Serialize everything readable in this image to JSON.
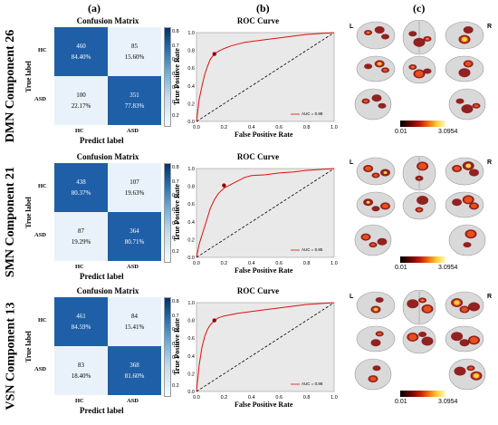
{
  "panels": {
    "a": "(a)",
    "b": "(b)",
    "c": "(c)"
  },
  "confusion_common": {
    "title": "Confusion Matrix",
    "xlabel": "Predict label",
    "ylabel": "True label",
    "hc": "HC",
    "asd": "ASD",
    "colorbar_ticks": [
      "0.8",
      "0.7",
      "0.6",
      "0.5",
      "0.4",
      "0.3",
      "0.2"
    ]
  },
  "roc_common": {
    "title": "ROC Curve",
    "xlabel": "False Positive Rate",
    "ylabel": "True Positive Rate",
    "ticks": [
      "0.0",
      "0.2",
      "0.4",
      "0.6",
      "0.8",
      "1.0"
    ],
    "legend_prefix": "AUC"
  },
  "brain_common": {
    "left": "L",
    "right": "R",
    "cmin": "0.01",
    "cmax": "3.0954"
  },
  "rows": [
    {
      "label": "DMN Component 26",
      "cm": {
        "tl": {
          "count": "460",
          "pct": "84.40%"
        },
        "tr": {
          "count": "85",
          "pct": "15.60%"
        },
        "bl": {
          "count": "100",
          "pct": "22.17%"
        },
        "br": {
          "count": "351",
          "pct": "77.83%"
        }
      },
      "auc": "AUC = 0.88"
    },
    {
      "label": "SMN Component 21",
      "cm": {
        "tl": {
          "count": "438",
          "pct": "80.37%"
        },
        "tr": {
          "count": "107",
          "pct": "19.63%"
        },
        "bl": {
          "count": "87",
          "pct": "19.29%"
        },
        "br": {
          "count": "364",
          "pct": "80.71%"
        }
      },
      "auc": "AUC = 0.85"
    },
    {
      "label": "VSN Component 13",
      "cm": {
        "tl": {
          "count": "461",
          "pct": "84.59%"
        },
        "tr": {
          "count": "84",
          "pct": "15.41%"
        },
        "bl": {
          "count": "83",
          "pct": "18.40%"
        },
        "br": {
          "count": "368",
          "pct": "81.60%"
        }
      },
      "auc": "AUC = 0.88"
    }
  ],
  "chart_data": [
    {
      "type": "heatmap",
      "title": "Confusion Matrix",
      "xlabel": "Predict label",
      "ylabel": "True label",
      "x_categories": [
        "HC",
        "ASD"
      ],
      "y_categories": [
        "HC",
        "ASD"
      ],
      "values": [
        [
          460,
          85
        ],
        [
          100,
          351
        ]
      ],
      "percent": [
        [
          84.4,
          15.6
        ],
        [
          22.17,
          77.83
        ]
      ]
    },
    {
      "type": "line",
      "title": "ROC Curve",
      "xlabel": "False Positive Rate",
      "ylabel": "True Positive Rate",
      "xlim": [
        0,
        1
      ],
      "ylim": [
        0,
        1
      ],
      "legend": "AUC = 0.88",
      "legend_position": "bottom-right",
      "x": [
        0,
        0.02,
        0.04,
        0.06,
        0.08,
        0.1,
        0.13,
        0.16,
        0.2,
        0.25,
        0.3,
        0.35,
        0.4,
        0.5,
        0.6,
        0.7,
        0.8,
        0.9,
        1.0
      ],
      "y": [
        0,
        0.25,
        0.4,
        0.53,
        0.62,
        0.7,
        0.76,
        0.79,
        0.82,
        0.85,
        0.87,
        0.89,
        0.9,
        0.92,
        0.94,
        0.96,
        0.98,
        0.99,
        1.0
      ],
      "marker": [
        0.13,
        0.76
      ]
    },
    {
      "type": "heatmap",
      "title": "Confusion Matrix",
      "xlabel": "Predict label",
      "ylabel": "True label",
      "x_categories": [
        "HC",
        "ASD"
      ],
      "y_categories": [
        "HC",
        "ASD"
      ],
      "values": [
        [
          438,
          107
        ],
        [
          87,
          364
        ]
      ],
      "percent": [
        [
          80.37,
          19.63
        ],
        [
          19.29,
          80.71
        ]
      ]
    },
    {
      "type": "line",
      "title": "ROC Curve",
      "xlabel": "False Positive Rate",
      "ylabel": "True Positive Rate",
      "xlim": [
        0,
        1
      ],
      "ylim": [
        0,
        1
      ],
      "legend": "AUC = 0.85",
      "legend_position": "bottom-right",
      "x": [
        0,
        0.02,
        0.05,
        0.08,
        0.1,
        0.13,
        0.16,
        0.2,
        0.25,
        0.3,
        0.35,
        0.4,
        0.5,
        0.6,
        0.7,
        0.8,
        0.9,
        1.0
      ],
      "y": [
        0,
        0.15,
        0.3,
        0.45,
        0.55,
        0.65,
        0.72,
        0.78,
        0.82,
        0.86,
        0.9,
        0.92,
        0.93,
        0.95,
        0.96,
        0.98,
        0.99,
        1.0
      ],
      "marker": [
        0.2,
        0.81
      ]
    },
    {
      "type": "heatmap",
      "title": "Confusion Matrix",
      "xlabel": "Predict label",
      "ylabel": "True label",
      "x_categories": [
        "HC",
        "ASD"
      ],
      "y_categories": [
        "HC",
        "ASD"
      ],
      "values": [
        [
          461,
          84
        ],
        [
          83,
          368
        ]
      ],
      "percent": [
        [
          84.59,
          15.41
        ],
        [
          18.4,
          81.6
        ]
      ]
    },
    {
      "type": "line",
      "title": "ROC Curve",
      "xlabel": "False Positive Rate",
      "ylabel": "True Positive Rate",
      "xlim": [
        0,
        1
      ],
      "ylim": [
        0,
        1
      ],
      "legend": "AUC = 0.88",
      "legend_position": "bottom-right",
      "x": [
        0,
        0.02,
        0.04,
        0.06,
        0.08,
        0.1,
        0.13,
        0.16,
        0.2,
        0.3,
        0.4,
        0.5,
        0.6,
        0.7,
        0.8,
        0.9,
        1.0
      ],
      "y": [
        0,
        0.3,
        0.5,
        0.62,
        0.7,
        0.75,
        0.8,
        0.83,
        0.85,
        0.88,
        0.9,
        0.92,
        0.94,
        0.96,
        0.98,
        0.99,
        1.0
      ],
      "marker": [
        0.13,
        0.8
      ]
    }
  ]
}
